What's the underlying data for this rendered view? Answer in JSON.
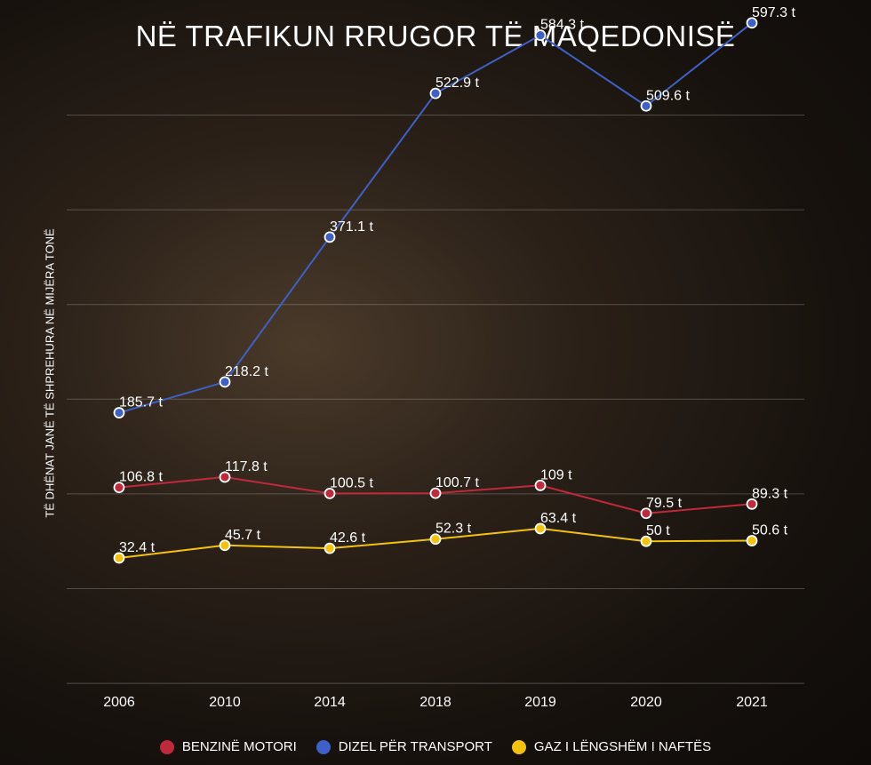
{
  "chart_data": {
    "type": "line",
    "title": "NË TRAFIKUN RRUGOR TË MAQEDONISË",
    "ylabel": "TË DHËNAT JANË TË SHPREHURA NË MIJËRA TONË",
    "xlabel": "",
    "categories": [
      "2006",
      "2010",
      "2014",
      "2018",
      "2019",
      "2020",
      "2021"
    ],
    "ylim": [
      -50,
      650
    ],
    "grid": true,
    "legend_position": "bottom",
    "series": [
      {
        "name": "BENZINË MOTORI",
        "color": "#c0283c",
        "values": [
          106.8,
          117.8,
          100.5,
          100.7,
          109,
          79.5,
          89.3
        ],
        "labels": [
          "106.8 t",
          "117.8 t",
          "100.5 t",
          "100.7 t",
          "109 t",
          "79.5 t",
          "89.3 t"
        ]
      },
      {
        "name": "DIZEL PËR TRANSPORT",
        "color": "#3f60c6",
        "values": [
          185.7,
          218.2,
          371.1,
          522.9,
          584.3,
          509.6,
          597.3
        ],
        "labels": [
          "185.7 t",
          "218.2 t",
          "371.1 t",
          "522.9 t",
          "584.3 t",
          "509.6 t",
          "597.3 t"
        ]
      },
      {
        "name": "GAZ I LËNGSHËM I NAFTËS",
        "color": "#f3c20f",
        "values": [
          32.4,
          45.7,
          42.6,
          52.3,
          63.4,
          50,
          50.6
        ],
        "labels": [
          "32.4 t",
          "45.7 t",
          "42.6 t",
          "52.3 t",
          "63.4 t",
          "50 t",
          "50.6 t"
        ]
      }
    ]
  }
}
